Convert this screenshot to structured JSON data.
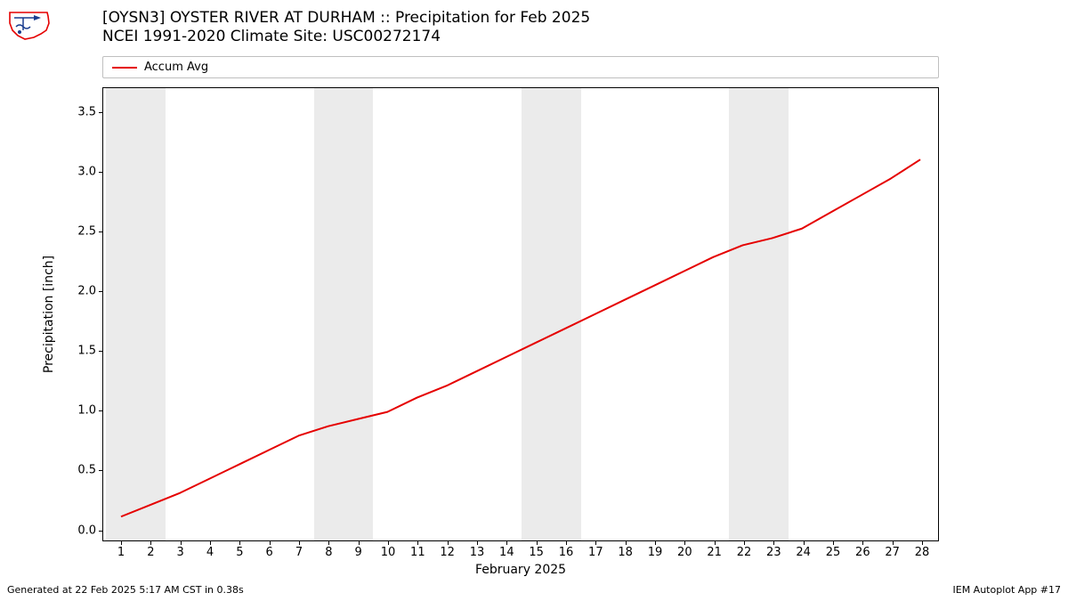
{
  "title_line1": "[OYSN3] OYSTER RIVER  AT DURHAM :: Precipitation for Feb 2025",
  "title_line2": "NCEI 1991-2020 Climate Site: USC00272174",
  "legend": {
    "label": "Accum Avg",
    "color": "#e50000"
  },
  "chart": {
    "type": "line",
    "xlabel": "February 2025",
    "ylabel": "Precipitation [inch]",
    "xlim": [
      0.4,
      28.6
    ],
    "ylim": [
      -0.1,
      3.7
    ],
    "xticks": [
      1,
      2,
      3,
      4,
      5,
      6,
      7,
      8,
      9,
      10,
      11,
      12,
      13,
      14,
      15,
      16,
      17,
      18,
      19,
      20,
      21,
      22,
      23,
      24,
      25,
      26,
      27,
      28
    ],
    "yticks": [
      0.0,
      0.5,
      1.0,
      1.5,
      2.0,
      2.5,
      3.0,
      3.5
    ],
    "ytick_labels": [
      "0.0",
      "0.5",
      "1.0",
      "1.5",
      "2.0",
      "2.5",
      "3.0",
      "3.5"
    ],
    "background_color": "#ffffff",
    "band_color": "#ebebeb",
    "line_color": "#e50000",
    "line_width": 2,
    "weekend_bands": [
      [
        0.5,
        2.5
      ],
      [
        7.5,
        9.5
      ],
      [
        14.5,
        16.5
      ],
      [
        21.5,
        23.5
      ]
    ],
    "series": {
      "x": [
        1,
        2,
        3,
        4,
        5,
        6,
        7,
        8,
        9,
        10,
        11,
        12,
        13,
        14,
        15,
        16,
        17,
        18,
        19,
        20,
        21,
        22,
        23,
        24,
        25,
        26,
        27,
        28
      ],
      "y": [
        0.1,
        0.2,
        0.3,
        0.42,
        0.54,
        0.66,
        0.78,
        0.86,
        0.92,
        0.98,
        1.1,
        1.2,
        1.32,
        1.44,
        1.56,
        1.68,
        1.8,
        1.92,
        2.04,
        2.16,
        2.28,
        2.38,
        2.44,
        2.52,
        2.66,
        2.8,
        2.94,
        3.1
      ]
    },
    "title_fontsize": 17,
    "label_fontsize": 14,
    "tick_fontsize": 13
  },
  "footer_left": "Generated at 22 Feb 2025 5:17 AM CST in 0.38s",
  "footer_right": "IEM Autoplot App #17",
  "logo": {
    "outline_color": "#e50000",
    "accent_color": "#1a3d8f"
  }
}
